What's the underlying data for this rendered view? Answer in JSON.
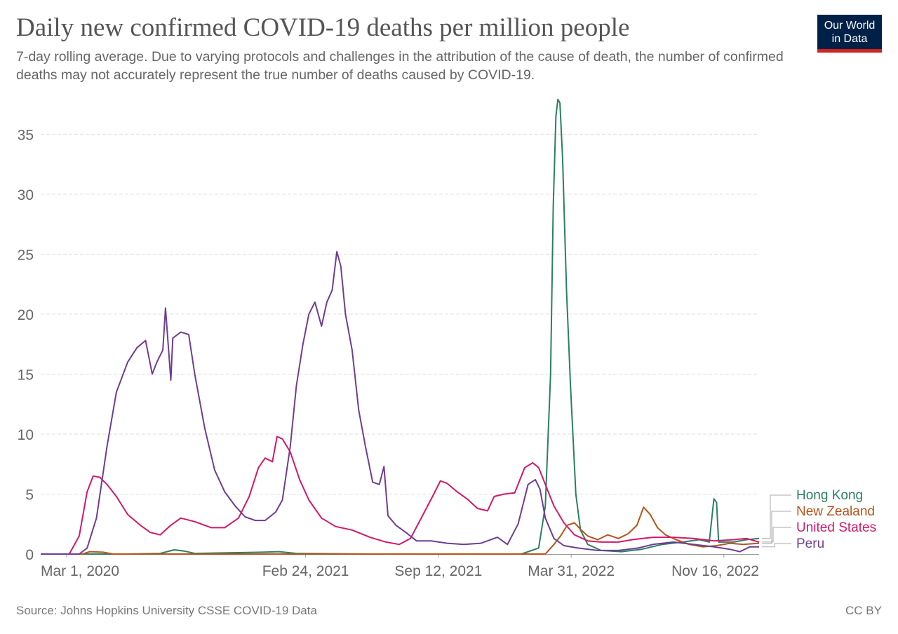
{
  "header": {
    "title": "Daily new confirmed COVID-19 deaths per million people",
    "subtitle": "7-day rolling average. Due to varying protocols and challenges in the attribution of the cause of death, the number of confirmed deaths may not accurately represent the true number of deaths caused by COVID-19.",
    "logo_line1": "Our World",
    "logo_line2": "in Data"
  },
  "footer": {
    "source": "Source: Johns Hopkins University CSSE COVID-19 Data",
    "license": "CC BY"
  },
  "colors": {
    "background": "#ffffff",
    "logo_bg": "#002147",
    "logo_accent": "#ce261e",
    "grid": "#dddddd"
  },
  "chart_data": {
    "type": "line",
    "ylim": [
      0,
      38
    ],
    "yticks": [
      0,
      5,
      10,
      15,
      20,
      25,
      30,
      35
    ],
    "xlim": [
      "2020-01-22",
      "2023-01-08"
    ],
    "xticks": [
      {
        "date": "2020-03-01",
        "label": "Mar 1, 2020"
      },
      {
        "date": "2021-02-24",
        "label": "Feb 24, 2021"
      },
      {
        "date": "2021-09-12",
        "label": "Sep 12, 2021"
      },
      {
        "date": "2022-03-31",
        "label": "Mar 31, 2022"
      },
      {
        "date": "2022-11-16",
        "label": "Nov 16, 2022"
      }
    ],
    "grid": "horizontal dashed",
    "legend_placement": "right",
    "series": [
      {
        "name": "Hong Kong",
        "color": "#2a7f62",
        "points": [
          [
            "2020-01-22",
            0
          ],
          [
            "2020-06-01",
            0
          ],
          [
            "2020-07-20",
            0.05
          ],
          [
            "2020-08-10",
            0.35
          ],
          [
            "2020-08-25",
            0.25
          ],
          [
            "2020-09-10",
            0.05
          ],
          [
            "2020-12-20",
            0.15
          ],
          [
            "2021-01-15",
            0.2
          ],
          [
            "2021-02-10",
            0.05
          ],
          [
            "2021-06-01",
            0
          ],
          [
            "2022-01-15",
            0
          ],
          [
            "2022-02-10",
            0.5
          ],
          [
            "2022-02-20",
            4
          ],
          [
            "2022-02-28",
            15
          ],
          [
            "2022-03-04",
            29
          ],
          [
            "2022-03-08",
            36.5
          ],
          [
            "2022-03-11",
            37.9
          ],
          [
            "2022-03-14",
            37.6
          ],
          [
            "2022-03-18",
            33
          ],
          [
            "2022-03-24",
            22
          ],
          [
            "2022-03-30",
            14
          ],
          [
            "2022-04-07",
            5
          ],
          [
            "2022-04-14",
            2
          ],
          [
            "2022-04-25",
            0.8
          ],
          [
            "2022-05-15",
            0.3
          ],
          [
            "2022-06-15",
            0.2
          ],
          [
            "2022-07-15",
            0.4
          ],
          [
            "2022-08-15",
            0.8
          ],
          [
            "2022-09-15",
            1.0
          ],
          [
            "2022-10-10",
            1.2
          ],
          [
            "2022-10-25",
            1.0
          ],
          [
            "2022-11-01",
            4.6
          ],
          [
            "2022-11-05",
            4.3
          ],
          [
            "2022-11-08",
            1.0
          ],
          [
            "2022-12-01",
            1.0
          ],
          [
            "2022-12-20",
            1.2
          ],
          [
            "2023-01-08",
            1.3
          ]
        ]
      },
      {
        "name": "New Zealand",
        "color": "#b5541b",
        "points": [
          [
            "2020-01-22",
            0
          ],
          [
            "2020-03-25",
            0
          ],
          [
            "2020-04-05",
            0.2
          ],
          [
            "2020-04-25",
            0.15
          ],
          [
            "2020-05-10",
            0
          ],
          [
            "2021-12-01",
            0
          ],
          [
            "2022-02-20",
            0
          ],
          [
            "2022-03-05",
            0.8
          ],
          [
            "2022-03-15",
            1.5
          ],
          [
            "2022-03-25",
            2.4
          ],
          [
            "2022-04-05",
            2.6
          ],
          [
            "2022-04-15",
            2.0
          ],
          [
            "2022-04-25",
            1.5
          ],
          [
            "2022-05-10",
            1.2
          ],
          [
            "2022-05-25",
            1.6
          ],
          [
            "2022-06-10",
            1.3
          ],
          [
            "2022-06-25",
            1.7
          ],
          [
            "2022-07-08",
            2.4
          ],
          [
            "2022-07-18",
            3.9
          ],
          [
            "2022-07-28",
            3.3
          ],
          [
            "2022-08-08",
            2.2
          ],
          [
            "2022-08-20",
            1.6
          ],
          [
            "2022-09-05",
            1.2
          ],
          [
            "2022-09-25",
            0.8
          ],
          [
            "2022-10-15",
            0.6
          ],
          [
            "2022-11-05",
            0.7
          ],
          [
            "2022-11-25",
            0.9
          ],
          [
            "2022-12-15",
            0.8
          ],
          [
            "2023-01-08",
            0.9
          ]
        ]
      },
      {
        "name": "United States",
        "color": "#d1196b",
        "points": [
          [
            "2020-01-22",
            0
          ],
          [
            "2020-03-05",
            0
          ],
          [
            "2020-03-20",
            1.5
          ],
          [
            "2020-04-01",
            5.2
          ],
          [
            "2020-04-10",
            6.5
          ],
          [
            "2020-04-20",
            6.4
          ],
          [
            "2020-05-01",
            5.8
          ],
          [
            "2020-05-15",
            4.8
          ],
          [
            "2020-06-01",
            3.3
          ],
          [
            "2020-06-20",
            2.4
          ],
          [
            "2020-07-05",
            1.8
          ],
          [
            "2020-07-20",
            1.6
          ],
          [
            "2020-08-05",
            2.4
          ],
          [
            "2020-08-20",
            3.0
          ],
          [
            "2020-09-10",
            2.7
          ],
          [
            "2020-10-05",
            2.2
          ],
          [
            "2020-10-25",
            2.2
          ],
          [
            "2020-11-15",
            3.0
          ],
          [
            "2020-12-01",
            4.8
          ],
          [
            "2020-12-15",
            7.2
          ],
          [
            "2020-12-25",
            8.0
          ],
          [
            "2021-01-05",
            7.7
          ],
          [
            "2021-01-12",
            9.8
          ],
          [
            "2021-01-20",
            9.6
          ],
          [
            "2021-02-01",
            8.5
          ],
          [
            "2021-02-15",
            6.2
          ],
          [
            "2021-03-01",
            4.5
          ],
          [
            "2021-03-20",
            3.0
          ],
          [
            "2021-04-10",
            2.3
          ],
          [
            "2021-05-05",
            2.0
          ],
          [
            "2021-06-01",
            1.4
          ],
          [
            "2021-06-25",
            1.0
          ],
          [
            "2021-07-15",
            0.8
          ],
          [
            "2021-08-01",
            1.3
          ],
          [
            "2021-08-20",
            3.3
          ],
          [
            "2021-09-05",
            5.0
          ],
          [
            "2021-09-15",
            6.1
          ],
          [
            "2021-09-25",
            5.9
          ],
          [
            "2021-10-10",
            5.2
          ],
          [
            "2021-10-25",
            4.6
          ],
          [
            "2021-11-10",
            3.8
          ],
          [
            "2021-11-25",
            3.6
          ],
          [
            "2021-12-05",
            4.8
          ],
          [
            "2021-12-20",
            5.0
          ],
          [
            "2022-01-05",
            5.1
          ],
          [
            "2022-01-20",
            7.2
          ],
          [
            "2022-02-01",
            7.6
          ],
          [
            "2022-02-10",
            7.2
          ],
          [
            "2022-02-20",
            5.8
          ],
          [
            "2022-03-05",
            4.0
          ],
          [
            "2022-03-20",
            2.6
          ],
          [
            "2022-04-05",
            1.6
          ],
          [
            "2022-04-25",
            1.1
          ],
          [
            "2022-05-15",
            1.0
          ],
          [
            "2022-06-10",
            1.0
          ],
          [
            "2022-07-01",
            1.2
          ],
          [
            "2022-08-01",
            1.4
          ],
          [
            "2022-09-01",
            1.4
          ],
          [
            "2022-10-01",
            1.3
          ],
          [
            "2022-11-01",
            1.1
          ],
          [
            "2022-12-01",
            1.2
          ],
          [
            "2022-12-20",
            1.3
          ],
          [
            "2023-01-08",
            1.0
          ]
        ]
      },
      {
        "name": "Peru",
        "color": "#6d3e91",
        "points": [
          [
            "2020-01-22",
            0
          ],
          [
            "2020-03-20",
            0
          ],
          [
            "2020-04-01",
            0.5
          ],
          [
            "2020-04-15",
            3
          ],
          [
            "2020-05-01",
            9
          ],
          [
            "2020-05-15",
            13.5
          ],
          [
            "2020-06-01",
            16
          ],
          [
            "2020-06-15",
            17.2
          ],
          [
            "2020-06-28",
            17.8
          ],
          [
            "2020-07-08",
            15
          ],
          [
            "2020-07-15",
            16
          ],
          [
            "2020-07-24",
            17
          ],
          [
            "2020-07-28",
            20.5
          ],
          [
            "2020-08-01",
            17.5
          ],
          [
            "2020-08-05",
            14.5
          ],
          [
            "2020-08-08",
            18
          ],
          [
            "2020-08-20",
            18.5
          ],
          [
            "2020-09-01",
            18.3
          ],
          [
            "2020-09-10",
            15
          ],
          [
            "2020-09-25",
            10.5
          ],
          [
            "2020-10-10",
            7
          ],
          [
            "2020-10-25",
            5.2
          ],
          [
            "2020-11-10",
            4.0
          ],
          [
            "2020-11-25",
            3.1
          ],
          [
            "2020-12-10",
            2.8
          ],
          [
            "2020-12-25",
            2.8
          ],
          [
            "2021-01-10",
            3.5
          ],
          [
            "2021-01-20",
            4.5
          ],
          [
            "2021-02-01",
            9
          ],
          [
            "2021-02-10",
            14
          ],
          [
            "2021-02-20",
            17.5
          ],
          [
            "2021-03-01",
            20
          ],
          [
            "2021-03-10",
            21
          ],
          [
            "2021-03-20",
            19
          ],
          [
            "2021-03-28",
            21
          ],
          [
            "2021-04-05",
            22
          ],
          [
            "2021-04-12",
            25.2
          ],
          [
            "2021-04-18",
            24
          ],
          [
            "2021-04-25",
            20
          ],
          [
            "2021-05-05",
            17
          ],
          [
            "2021-05-15",
            12
          ],
          [
            "2021-05-25",
            9
          ],
          [
            "2021-06-05",
            6
          ],
          [
            "2021-06-15",
            5.8
          ],
          [
            "2021-06-22",
            7.3
          ],
          [
            "2021-06-28",
            3.2
          ],
          [
            "2021-07-10",
            2.4
          ],
          [
            "2021-07-25",
            1.8
          ],
          [
            "2021-08-10",
            1.1
          ],
          [
            "2021-09-01",
            1.1
          ],
          [
            "2021-09-25",
            0.9
          ],
          [
            "2021-10-20",
            0.8
          ],
          [
            "2021-11-15",
            0.9
          ],
          [
            "2021-12-10",
            1.4
          ],
          [
            "2021-12-25",
            0.8
          ],
          [
            "2022-01-10",
            2.5
          ],
          [
            "2022-01-25",
            5.8
          ],
          [
            "2022-02-05",
            6.2
          ],
          [
            "2022-02-12",
            5.4
          ],
          [
            "2022-02-20",
            3.0
          ],
          [
            "2022-03-05",
            1.3
          ],
          [
            "2022-03-20",
            0.7
          ],
          [
            "2022-04-10",
            0.5
          ],
          [
            "2022-05-10",
            0.3
          ],
          [
            "2022-06-10",
            0.3
          ],
          [
            "2022-07-10",
            0.5
          ],
          [
            "2022-08-01",
            0.8
          ],
          [
            "2022-09-01",
            1.0
          ],
          [
            "2022-10-01",
            0.8
          ],
          [
            "2022-11-01",
            0.6
          ],
          [
            "2022-11-25",
            0.4
          ],
          [
            "2022-12-10",
            0.2
          ],
          [
            "2022-12-25",
            0.6
          ],
          [
            "2023-01-08",
            0.6
          ]
        ]
      }
    ]
  }
}
